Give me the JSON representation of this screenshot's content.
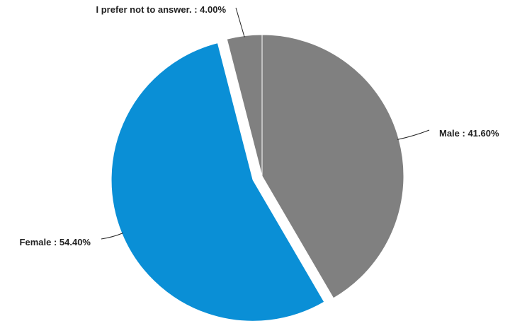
{
  "chart_data": {
    "type": "pie",
    "slices": [
      {
        "name": "Male",
        "value": 41.6,
        "label": "Male : 41.60%",
        "color": "#808080",
        "exploded": false
      },
      {
        "name": "Female",
        "value": 54.4,
        "label": "Female : 54.40%",
        "color": "#0a8fd6",
        "exploded": true
      },
      {
        "name": "I prefer not to answer.",
        "value": 4.0,
        "label": "I prefer not to answer. : 4.00%",
        "color": "#808080",
        "exploded": false
      }
    ],
    "start": "12 o'clock",
    "direction": "clockwise",
    "legend": "none"
  }
}
